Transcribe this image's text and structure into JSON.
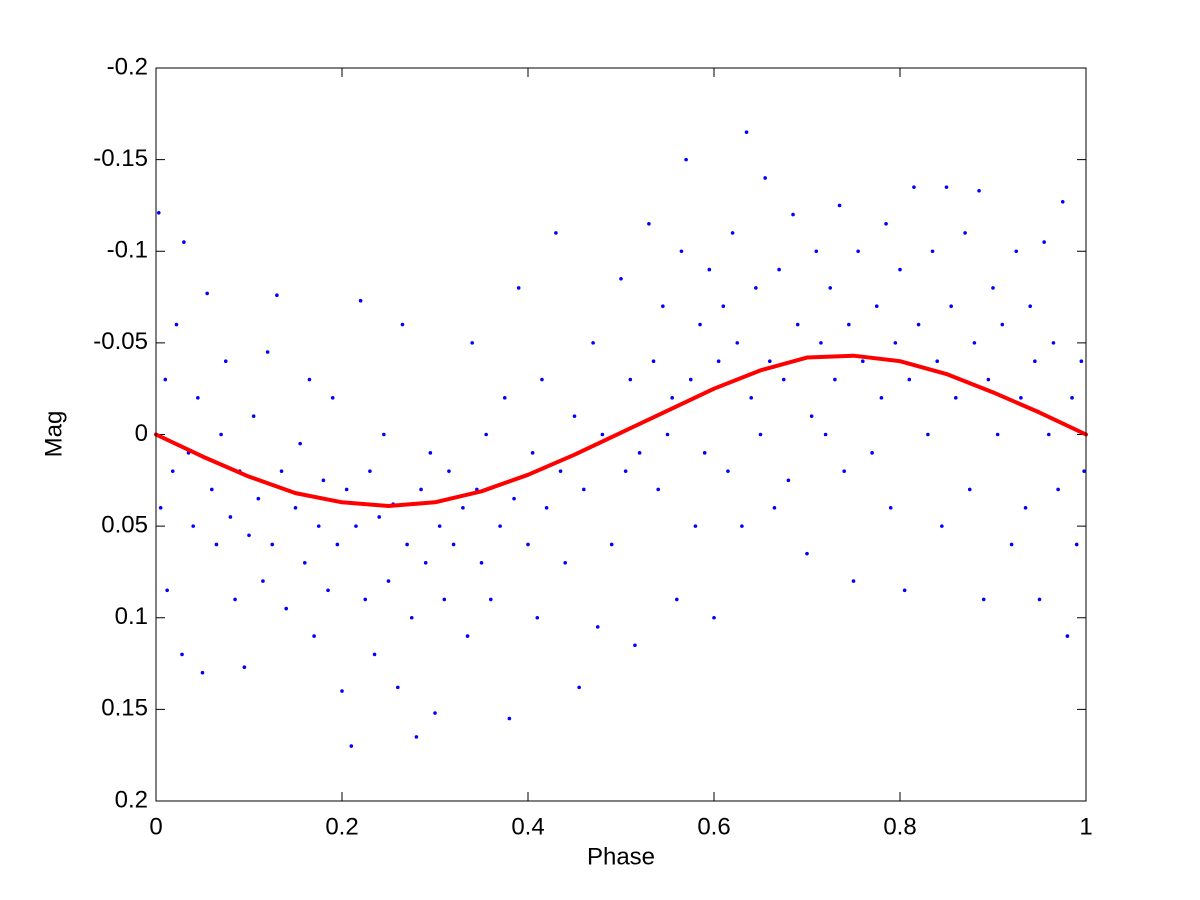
{
  "chart_data": {
    "type": "scatter",
    "x_label": "Phase",
    "y_label": "Mag",
    "xlim": [
      0,
      1
    ],
    "xticks": [
      0,
      0.2,
      0.4,
      0.6,
      0.8,
      1
    ],
    "ylim": [
      0.2,
      -0.2
    ],
    "yticks": [
      -0.2,
      -0.15,
      -0.1,
      -0.05,
      0,
      0.05,
      0.1,
      0.15,
      0.2
    ],
    "series": [
      {
        "type": "scatter",
        "color": "#0000ff",
        "x": [
          0.003,
          0.005,
          0.01,
          0.012,
          0.018,
          0.022,
          0.028,
          0.03,
          0.035,
          0.04,
          0.045,
          0.05,
          0.055,
          0.06,
          0.065,
          0.07,
          0.075,
          0.08,
          0.085,
          0.09,
          0.095,
          0.1,
          0.105,
          0.11,
          0.115,
          0.12,
          0.125,
          0.13,
          0.135,
          0.14,
          0.15,
          0.155,
          0.16,
          0.165,
          0.17,
          0.175,
          0.18,
          0.185,
          0.19,
          0.195,
          0.2,
          0.205,
          0.21,
          0.215,
          0.22,
          0.225,
          0.23,
          0.235,
          0.24,
          0.245,
          0.25,
          0.255,
          0.26,
          0.265,
          0.27,
          0.275,
          0.28,
          0.285,
          0.29,
          0.295,
          0.3,
          0.305,
          0.31,
          0.315,
          0.32,
          0.33,
          0.335,
          0.34,
          0.345,
          0.35,
          0.355,
          0.36,
          0.37,
          0.375,
          0.38,
          0.385,
          0.39,
          0.4,
          0.405,
          0.41,
          0.415,
          0.42,
          0.43,
          0.435,
          0.44,
          0.45,
          0.455,
          0.46,
          0.47,
          0.475,
          0.48,
          0.49,
          0.5,
          0.505,
          0.51,
          0.515,
          0.52,
          0.53,
          0.535,
          0.54,
          0.545,
          0.55,
          0.555,
          0.56,
          0.565,
          0.57,
          0.575,
          0.58,
          0.585,
          0.59,
          0.595,
          0.6,
          0.605,
          0.61,
          0.615,
          0.62,
          0.625,
          0.63,
          0.635,
          0.64,
          0.645,
          0.65,
          0.655,
          0.66,
          0.665,
          0.67,
          0.675,
          0.68,
          0.685,
          0.69,
          0.7,
          0.705,
          0.71,
          0.715,
          0.72,
          0.725,
          0.73,
          0.735,
          0.74,
          0.745,
          0.75,
          0.755,
          0.76,
          0.77,
          0.775,
          0.78,
          0.785,
          0.79,
          0.795,
          0.8,
          0.805,
          0.81,
          0.815,
          0.82,
          0.83,
          0.835,
          0.84,
          0.845,
          0.85,
          0.855,
          0.86,
          0.87,
          0.875,
          0.88,
          0.885,
          0.89,
          0.895,
          0.9,
          0.905,
          0.91,
          0.92,
          0.925,
          0.93,
          0.935,
          0.94,
          0.945,
          0.95,
          0.955,
          0.96,
          0.965,
          0.97,
          0.975,
          0.98,
          0.985,
          0.99,
          0.995,
          0.998
        ],
        "values": [
          -0.121,
          0.04,
          -0.03,
          0.085,
          0.02,
          -0.06,
          0.12,
          -0.105,
          0.01,
          0.05,
          -0.02,
          0.13,
          -0.077,
          0.03,
          0.06,
          0.0,
          -0.04,
          0.045,
          0.09,
          0.02,
          0.127,
          0.055,
          -0.01,
          0.035,
          0.08,
          -0.045,
          0.06,
          -0.076,
          0.02,
          0.095,
          0.04,
          0.005,
          0.07,
          -0.03,
          0.11,
          0.05,
          0.025,
          0.085,
          -0.02,
          0.06,
          0.14,
          0.03,
          0.17,
          0.05,
          -0.073,
          0.09,
          0.02,
          0.12,
          0.045,
          0.0,
          0.08,
          0.038,
          0.138,
          -0.06,
          0.06,
          0.1,
          0.165,
          0.03,
          0.07,
          0.01,
          0.152,
          0.05,
          0.09,
          0.02,
          0.06,
          0.04,
          0.11,
          -0.05,
          0.03,
          0.07,
          0.0,
          0.09,
          0.05,
          -0.02,
          0.155,
          0.035,
          -0.08,
          0.06,
          0.01,
          0.1,
          -0.03,
          0.04,
          -0.11,
          0.02,
          0.07,
          -0.01,
          0.138,
          0.03,
          -0.05,
          0.105,
          0.0,
          0.06,
          -0.085,
          0.02,
          -0.03,
          0.115,
          0.01,
          -0.115,
          -0.04,
          0.03,
          -0.07,
          0.0,
          -0.02,
          0.09,
          -0.1,
          -0.15,
          -0.03,
          0.05,
          -0.06,
          0.01,
          -0.09,
          0.1,
          -0.04,
          -0.07,
          0.02,
          -0.11,
          -0.05,
          0.05,
          -0.165,
          -0.02,
          -0.08,
          0.0,
          -0.14,
          -0.04,
          0.04,
          -0.09,
          -0.03,
          0.025,
          -0.12,
          -0.06,
          0.065,
          -0.01,
          -0.1,
          -0.05,
          0.0,
          -0.08,
          -0.03,
          -0.125,
          0.02,
          -0.06,
          0.08,
          -0.1,
          -0.04,
          0.01,
          -0.07,
          -0.02,
          -0.115,
          0.04,
          -0.05,
          -0.09,
          0.085,
          -0.03,
          -0.135,
          -0.06,
          0.0,
          -0.1,
          -0.04,
          0.05,
          -0.135,
          -0.07,
          -0.02,
          -0.11,
          0.03,
          -0.05,
          -0.133,
          0.09,
          -0.03,
          -0.08,
          0.0,
          -0.06,
          0.06,
          -0.1,
          -0.02,
          0.04,
          -0.07,
          -0.04,
          0.09,
          -0.105,
          0.0,
          -0.05,
          0.03,
          -0.127,
          0.11,
          -0.02,
          0.06,
          -0.04,
          0.02
        ]
      },
      {
        "type": "line",
        "color": "#ff0000",
        "x": [
          0,
          0.05,
          0.1,
          0.15,
          0.2,
          0.25,
          0.3,
          0.35,
          0.4,
          0.45,
          0.5,
          0.55,
          0.6,
          0.65,
          0.7,
          0.75,
          0.8,
          0.85,
          0.9,
          0.95,
          1
        ],
        "values": [
          0,
          0.012,
          0.023,
          0.032,
          0.037,
          0.039,
          0.037,
          0.031,
          0.022,
          0.011,
          -0.001,
          -0.013,
          -0.025,
          -0.035,
          -0.042,
          -0.043,
          -0.04,
          -0.033,
          -0.023,
          -0.012,
          0
        ]
      }
    ]
  }
}
